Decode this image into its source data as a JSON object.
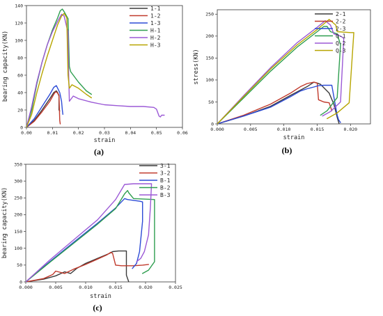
{
  "chart_data": [
    {
      "type": "line",
      "caption": "(a)",
      "xlabel": "strain",
      "ylabel": "bearing capacity(KN)",
      "xlim": [
        0,
        0.06
      ],
      "ylim": [
        0,
        140
      ],
      "xticks": [
        "0.00",
        "0.01",
        "0.02",
        "0.03",
        "0.04",
        "0.05",
        "0.06"
      ],
      "yticks": [
        "0",
        "20",
        "40",
        "60",
        "80",
        "100",
        "120",
        "140"
      ],
      "legend_position": "top-right",
      "series": [
        {
          "name": "1-1",
          "color": "#3a3a3a",
          "x": [
            0,
            0.003,
            0.006,
            0.009,
            0.0105,
            0.0115,
            0.012,
            0.0125,
            0.0125,
            0.0128
          ],
          "y": [
            0,
            8,
            20,
            33,
            40,
            42,
            40,
            36,
            20,
            19
          ]
        },
        {
          "name": "1-2",
          "color": "#c0392b",
          "x": [
            0,
            0.003,
            0.006,
            0.009,
            0.0105,
            0.0112,
            0.0118,
            0.0125,
            0.0128,
            0.013
          ],
          "y": [
            0,
            7,
            18,
            30,
            38,
            41,
            40,
            37,
            8,
            4
          ]
        },
        {
          "name": "1-3",
          "color": "#2c4bd6",
          "x": [
            0,
            0.003,
            0.006,
            0.009,
            0.0105,
            0.0115,
            0.012,
            0.0128,
            0.0135,
            0.0138,
            0.014
          ],
          "y": [
            0,
            10,
            24,
            38,
            46,
            48,
            45,
            40,
            30,
            20,
            15
          ]
        },
        {
          "name": "H-1",
          "color": "#2e9e4f",
          "x": [
            0,
            0.002,
            0.004,
            0.006,
            0.008,
            0.01,
            0.012,
            0.013,
            0.0138,
            0.0145,
            0.016,
            0.0165,
            0.017,
            0.02,
            0.023,
            0.025
          ],
          "y": [
            0,
            20,
            50,
            75,
            95,
            112,
            126,
            134,
            136,
            133,
            125,
            70,
            64,
            52,
            42,
            38
          ]
        },
        {
          "name": "H-2",
          "color": "#9b59d6",
          "x": [
            0,
            0.002,
            0.004,
            0.006,
            0.008,
            0.01,
            0.012,
            0.0135,
            0.0145,
            0.0155,
            0.016,
            0.0162,
            0.0165,
            0.018,
            0.02,
            0.025,
            0.03,
            0.035,
            0.04,
            0.045,
            0.049,
            0.05,
            0.051,
            0.0515,
            0.052,
            0.053
          ],
          "y": [
            0,
            24,
            52,
            75,
            95,
            110,
            122,
            130,
            128,
            115,
            110,
            65,
            30,
            36,
            33,
            29,
            26,
            25,
            24,
            24,
            23,
            21,
            13,
            12,
            14,
            14
          ]
        },
        {
          "name": "H-3",
          "color": "#b7a500",
          "x": [
            0,
            0.002,
            0.004,
            0.006,
            0.008,
            0.01,
            0.012,
            0.0135,
            0.0145,
            0.0155,
            0.016,
            0.0165,
            0.0175,
            0.02,
            0.023,
            0.025
          ],
          "y": [
            0,
            15,
            40,
            62,
            82,
            100,
            118,
            128,
            131,
            126,
            60,
            45,
            49,
            45,
            38,
            34
          ]
        }
      ]
    },
    {
      "type": "line",
      "caption": "(b)",
      "xlabel": "strain",
      "ylabel": "stress(KN)",
      "xlim": [
        0,
        0.023
      ],
      "ylim": [
        0,
        260
      ],
      "xticks": [
        "0.000",
        "0.005",
        "0.010",
        "0.015",
        "0.020"
      ],
      "yticks": [
        "0",
        "50",
        "100",
        "150",
        "200",
        "250"
      ],
      "legend_position": "top-right",
      "series": [
        {
          "name": "2-1",
          "color": "#3a3a3a",
          "x": [
            0,
            0.004,
            0.008,
            0.011,
            0.0135,
            0.0145,
            0.015,
            0.0155,
            0.0168,
            0.0175,
            0.018,
            0.0183
          ],
          "y": [
            0,
            18,
            40,
            65,
            85,
            95,
            93,
            90,
            70,
            45,
            15,
            0
          ]
        },
        {
          "name": "2-2",
          "color": "#c0392b",
          "x": [
            0,
            0.004,
            0.008,
            0.011,
            0.0125,
            0.0135,
            0.0145,
            0.015,
            0.0152,
            0.016,
            0.0168,
            0.0172
          ],
          "y": [
            0,
            20,
            45,
            70,
            85,
            92,
            95,
            93,
            55,
            50,
            48,
            30
          ]
        },
        {
          "name": "2-3",
          "color": "#2c4bd6",
          "x": [
            0,
            0.004,
            0.008,
            0.011,
            0.0125,
            0.0135,
            0.0145,
            0.0152,
            0.016,
            0.0172,
            0.0177,
            0.018,
            0.0182,
            0.0185
          ],
          "y": [
            0,
            18,
            38,
            62,
            75,
            80,
            84,
            87,
            88,
            88,
            45,
            20,
            10,
            3
          ]
        },
        {
          "name": "Q-1",
          "color": "#2e9e4f",
          "x": [
            0,
            0.004,
            0.008,
            0.012,
            0.015,
            0.016,
            0.0165,
            0.017,
            0.018,
            0.0185,
            0.018,
            0.0165,
            0.0155
          ],
          "y": [
            0,
            60,
            120,
            175,
            210,
            222,
            222,
            210,
            205,
            180,
            60,
            30,
            20
          ]
        },
        {
          "name": "Q-2",
          "color": "#9b59d6",
          "x": [
            0,
            0.004,
            0.008,
            0.012,
            0.015,
            0.0162,
            0.017,
            0.0175,
            0.0185,
            0.019,
            0.0185,
            0.017,
            0.0158
          ],
          "y": [
            0,
            65,
            128,
            185,
            220,
            235,
            225,
            205,
            200,
            195,
            50,
            28,
            18
          ]
        },
        {
          "name": "Q-3",
          "color": "#b7a500",
          "x": [
            0,
            0.004,
            0.008,
            0.012,
            0.015,
            0.0168,
            0.0178,
            0.018,
            0.02,
            0.0205,
            0.0198,
            0.018,
            0.0165
          ],
          "y": [
            0,
            63,
            125,
            180,
            215,
            238,
            225,
            210,
            208,
            208,
            48,
            25,
            12
          ]
        }
      ]
    },
    {
      "type": "line",
      "caption": "(c)",
      "xlabel": "strain",
      "ylabel": "bearing capacity(KN)",
      "xlim": [
        0,
        0.025
      ],
      "ylim": [
        0,
        350
      ],
      "xticks": [
        "0.000",
        "0.005",
        "0.010",
        "0.015",
        "0.020",
        "0.025"
      ],
      "yticks": [
        "0",
        "50",
        "100",
        "150",
        "200",
        "250",
        "300",
        "350"
      ],
      "legend_position": "top-right",
      "series": [
        {
          "name": "3-1",
          "color": "#3a3a3a",
          "x": [
            0,
            0.003,
            0.005,
            0.0065,
            0.0075,
            0.0085,
            0.01,
            0.012,
            0.014,
            0.0145,
            0.0155,
            0.0168,
            0.0168,
            0.0172
          ],
          "y": [
            0,
            8,
            18,
            30,
            25,
            40,
            55,
            70,
            85,
            90,
            92,
            92,
            20,
            0
          ]
        },
        {
          "name": "3-2",
          "color": "#c0392b",
          "x": [
            0,
            0.003,
            0.0045,
            0.005,
            0.0065,
            0.008,
            0.01,
            0.012,
            0.0135,
            0.0142,
            0.0145,
            0.015,
            0.016,
            0.018,
            0.0195,
            0.0205
          ],
          "y": [
            0,
            10,
            22,
            32,
            25,
            38,
            52,
            68,
            80,
            88,
            85,
            50,
            48,
            48,
            50,
            52
          ]
        },
        {
          "name": "B-1",
          "color": "#2c4bd6",
          "x": [
            0,
            0.004,
            0.008,
            0.012,
            0.015,
            0.0165,
            0.017,
            0.019,
            0.0195,
            0.0195,
            0.019,
            0.0185,
            0.0178
          ],
          "y": [
            0,
            60,
            118,
            175,
            220,
            248,
            245,
            240,
            238,
            180,
            90,
            55,
            40
          ]
        },
        {
          "name": "B-2",
          "color": "#2e9e4f",
          "x": [
            0,
            0.004,
            0.008,
            0.012,
            0.015,
            0.0165,
            0.017,
            0.0172,
            0.018,
            0.0215,
            0.0215,
            0.0205,
            0.0195
          ],
          "y": [
            0,
            58,
            115,
            172,
            218,
            262,
            272,
            265,
            248,
            245,
            60,
            35,
            25
          ]
        },
        {
          "name": "B-3",
          "color": "#9b59d6",
          "x": [
            0,
            0.004,
            0.008,
            0.012,
            0.015,
            0.0165,
            0.018,
            0.021,
            0.0208,
            0.0205,
            0.0198,
            0.0192,
            0.0185
          ],
          "y": [
            0,
            65,
            125,
            185,
            245,
            290,
            292,
            292,
            220,
            140,
            90,
            70,
            60
          ]
        }
      ]
    }
  ]
}
